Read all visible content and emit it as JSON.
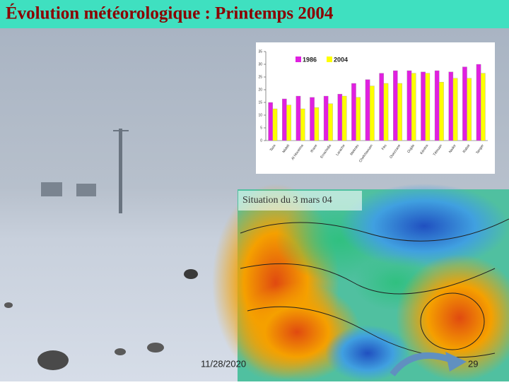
{
  "header": {
    "title": "Évolution météorologique : Printemps 2004"
  },
  "chart_data": {
    "type": "bar",
    "categories": [
      "Taza",
      "Midelt",
      "Al Hoceima",
      "Ifrane",
      "Errachidia",
      "Larache",
      "Meknès",
      "Chefchaouen",
      "Fès",
      "Ouezzane",
      "Oujda",
      "Kénitra",
      "Tétouan",
      "Nador",
      "Rabat",
      "Tanger"
    ],
    "series": [
      {
        "name": "1986",
        "color": "#e020e0",
        "values": [
          15,
          16.4,
          17.5,
          17,
          17.5,
          18.3,
          22.5,
          24,
          26.5,
          27.5,
          27.5,
          27,
          27.5,
          27,
          29,
          30
        ]
      },
      {
        "name": "2004",
        "color": "#ffff00",
        "values": [
          12.5,
          14,
          12.5,
          13,
          14.5,
          17.5,
          17,
          21.5,
          22.5,
          22.5,
          26.5,
          26.5,
          23,
          24.5,
          24.5,
          26.5
        ]
      }
    ],
    "ylim": [
      0,
      35
    ],
    "yticks": [
      0,
      5,
      10,
      15,
      20,
      25,
      30,
      35
    ],
    "grid": false,
    "legend": "top"
  },
  "map": {
    "caption": "Situation du 3 mars  04"
  },
  "footer": {
    "date": "11/28/2020",
    "page": "29"
  }
}
